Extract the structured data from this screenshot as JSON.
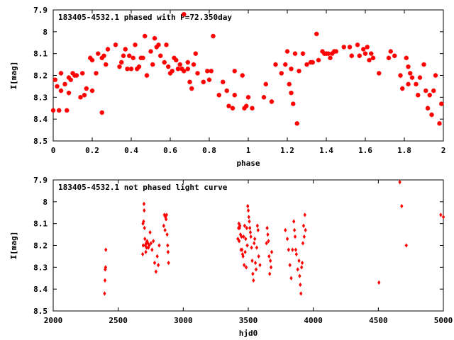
{
  "colors": {
    "marker": "#ff0000",
    "axis": "#000000",
    "background": "#ffffff"
  },
  "chart_data": [
    {
      "type": "scatter",
      "title": "183405-4532.1 phased with P=72.350day",
      "xlabel": "phase",
      "ylabel": "I[mag]",
      "xlim": [
        0,
        2
      ],
      "ylim": [
        7.9,
        8.5
      ],
      "y_inverted": true,
      "grid": false,
      "xticks": [
        "0",
        "0.2",
        "0.4",
        "0.6",
        "0.8",
        "1",
        "1.2",
        "1.4",
        "1.6",
        "1.8",
        "2"
      ],
      "yticks": [
        "7.9",
        "8",
        "8.1",
        "8.2",
        "8.3",
        "8.4",
        "8.5"
      ],
      "marker": "star",
      "x": [
        0.0,
        0.01,
        0.02,
        0.03,
        0.04,
        0.04,
        0.06,
        0.07,
        0.08,
        0.08,
        0.09,
        0.1,
        0.11,
        0.12,
        0.14,
        0.15,
        0.16,
        0.17,
        0.19,
        0.2,
        0.2,
        0.22,
        0.23,
        0.25,
        0.25,
        0.26,
        0.27,
        0.28,
        0.32,
        0.34,
        0.35,
        0.36,
        0.37,
        0.38,
        0.39,
        0.4,
        0.41,
        0.42,
        0.43,
        0.44,
        0.45,
        0.46,
        0.47,
        0.48,
        0.5,
        0.51,
        0.52,
        0.53,
        0.54,
        0.55,
        0.57,
        0.58,
        0.59,
        0.6,
        0.61,
        0.62,
        0.63,
        0.64,
        0.65,
        0.66,
        0.67,
        0.67,
        0.69,
        0.69,
        0.7,
        0.71,
        0.72,
        0.73,
        0.74,
        0.77,
        0.79,
        0.8,
        0.81,
        0.82,
        0.85,
        0.87,
        0.89,
        0.9,
        0.92,
        0.93,
        0.93,
        0.97,
        0.98,
        0.99,
        1.0,
        1.02,
        1.08,
        1.09,
        1.12,
        1.14,
        1.17,
        1.19,
        1.2,
        1.21,
        1.22,
        1.22,
        1.23,
        1.24,
        1.25,
        1.26,
        1.28,
        1.3,
        1.32,
        1.33,
        1.35,
        1.36,
        1.38,
        1.39,
        1.4,
        1.41,
        1.42,
        1.43,
        1.44,
        1.45,
        1.49,
        1.52,
        1.53,
        1.56,
        1.57,
        1.59,
        1.6,
        1.61,
        1.62,
        1.63,
        1.64,
        1.67,
        1.72,
        1.73,
        1.75,
        1.78,
        1.79,
        1.81,
        1.82,
        1.82,
        1.83,
        1.84,
        1.86,
        1.87,
        1.88,
        1.9,
        1.91,
        1.92,
        1.93,
        1.94,
        1.95,
        1.96,
        1.98,
        1.99
      ],
      "y": [
        8.36,
        8.22,
        8.25,
        8.36,
        8.27,
        8.19,
        8.24,
        8.36,
        8.21,
        8.28,
        8.22,
        8.19,
        8.2,
        8.2,
        8.3,
        8.19,
        8.29,
        8.26,
        8.12,
        8.13,
        8.27,
        8.19,
        8.1,
        8.12,
        8.37,
        8.11,
        8.15,
        8.08,
        8.06,
        8.16,
        8.14,
        8.11,
        8.08,
        8.17,
        8.11,
        8.17,
        8.12,
        8.06,
        8.17,
        8.16,
        8.12,
        8.12,
        8.02,
        8.2,
        8.09,
        8.15,
        8.03,
        8.07,
        8.06,
        8.11,
        8.14,
        8.06,
        8.16,
        8.19,
        8.18,
        8.12,
        8.13,
        8.17,
        8.15,
        8.17,
        7.92,
        8.18,
        8.17,
        8.14,
        8.23,
        8.26,
        8.15,
        8.1,
        8.19,
        8.23,
        8.18,
        8.22,
        8.18,
        8.02,
        8.29,
        8.23,
        8.27,
        8.34,
        8.35,
        8.29,
        8.18,
        8.2,
        8.35,
        8.34,
        8.3,
        8.35,
        8.3,
        8.24,
        8.32,
        8.15,
        8.19,
        8.15,
        8.09,
        8.24,
        8.17,
        8.28,
        8.33,
        8.1,
        8.42,
        8.18,
        8.1,
        8.15,
        8.14,
        8.14,
        8.01,
        8.13,
        8.09,
        8.1,
        8.1,
        8.1,
        8.12,
        8.1,
        8.09,
        8.09,
        8.07,
        8.07,
        8.11,
        8.06,
        8.11,
        8.08,
        8.1,
        8.07,
        8.13,
        8.1,
        8.12,
        8.19,
        8.12,
        8.09,
        8.11,
        8.2,
        8.26,
        8.12,
        8.24,
        8.16,
        8.19,
        8.21,
        8.24,
        8.29,
        8.21,
        8.15,
        8.27,
        8.35,
        8.29,
        8.38,
        8.27,
        8.2,
        8.42,
        8.33
      ]
    },
    {
      "type": "scatter",
      "title": "183405-4532.1 not phased light curve",
      "xlabel": "hjd0",
      "ylabel": "I[mag]",
      "xlim": [
        2000,
        5000
      ],
      "ylim": [
        7.9,
        8.5
      ],
      "y_inverted": true,
      "grid": false,
      "xticks": [
        "2000",
        "2500",
        "3000",
        "3500",
        "4000",
        "4500",
        "5000"
      ],
      "yticks": [
        "7.9",
        "8",
        "8.1",
        "8.2",
        "8.3",
        "8.4",
        "8.5"
      ],
      "marker": "diamond",
      "x": [
        2395,
        2398,
        2400,
        2403,
        2405,
        2688,
        2690,
        2692,
        2695,
        2698,
        2700,
        2702,
        2705,
        2708,
        2712,
        2715,
        2718,
        2722,
        2728,
        2732,
        2738,
        2745,
        2752,
        2760,
        2770,
        2780,
        2790,
        2800,
        2808,
        2815,
        2850,
        2855,
        2860,
        2863,
        2868,
        2872,
        2876,
        2880,
        2883,
        2887,
        3420,
        3425,
        3428,
        3430,
        3433,
        3436,
        3440,
        3444,
        3448,
        3452,
        3456,
        3460,
        3464,
        3468,
        3472,
        3476,
        3480,
        3484,
        3488,
        3492,
        3496,
        3500,
        3504,
        3508,
        3512,
        3516,
        3520,
        3525,
        3530,
        3535,
        3540,
        3545,
        3550,
        3555,
        3560,
        3565,
        3570,
        3575,
        3580,
        3590,
        3640,
        3645,
        3650,
        3655,
        3660,
        3665,
        3670,
        3675,
        3680,
        3785,
        3800,
        3810,
        3820,
        3830,
        3840,
        3850,
        3855,
        3860,
        3865,
        3870,
        3880,
        3890,
        3895,
        3900,
        3905,
        3910,
        3915,
        3920,
        3925,
        3930,
        3935,
        3940,
        4505,
        4665,
        4680,
        4715,
        4980,
        5000
      ],
      "y": [
        8.42,
        8.36,
        8.31,
        8.3,
        8.22,
        8.24,
        8.1,
        8.2,
        8.09,
        8.01,
        8.04,
        8.12,
        8.17,
        8.2,
        8.23,
        8.19,
        8.21,
        8.18,
        8.19,
        8.21,
        8.2,
        8.14,
        8.19,
        8.22,
        8.18,
        8.28,
        8.32,
        8.25,
        8.29,
        8.2,
        8.11,
        8.06,
        8.13,
        8.07,
        8.08,
        8.06,
        8.15,
        8.2,
        8.23,
        8.28,
        8.17,
        8.12,
        8.1,
        8.18,
        8.12,
        8.11,
        8.15,
        8.22,
        8.16,
        8.22,
        8.24,
        8.25,
        8.16,
        8.29,
        8.11,
        8.23,
        8.17,
        8.3,
        8.12,
        8.2,
        8.02,
        8.04,
        8.07,
        8.09,
        8.12,
        8.14,
        8.16,
        8.21,
        8.27,
        8.33,
        8.36,
        8.19,
        8.17,
        8.28,
        8.31,
        8.21,
        8.11,
        8.13,
        8.25,
        8.29,
        8.19,
        8.12,
        8.15,
        8.18,
        8.25,
        8.33,
        8.27,
        8.3,
        8.23,
        8.13,
        8.17,
        8.22,
        8.29,
        8.35,
        8.22,
        8.09,
        8.13,
        8.16,
        8.22,
        8.24,
        8.31,
        8.27,
        8.34,
        8.38,
        8.42,
        8.3,
        8.28,
        8.19,
        8.11,
        8.16,
        8.06,
        8.13,
        8.37,
        7.91,
        8.02,
        8.2,
        8.06,
        8.07
      ]
    }
  ]
}
